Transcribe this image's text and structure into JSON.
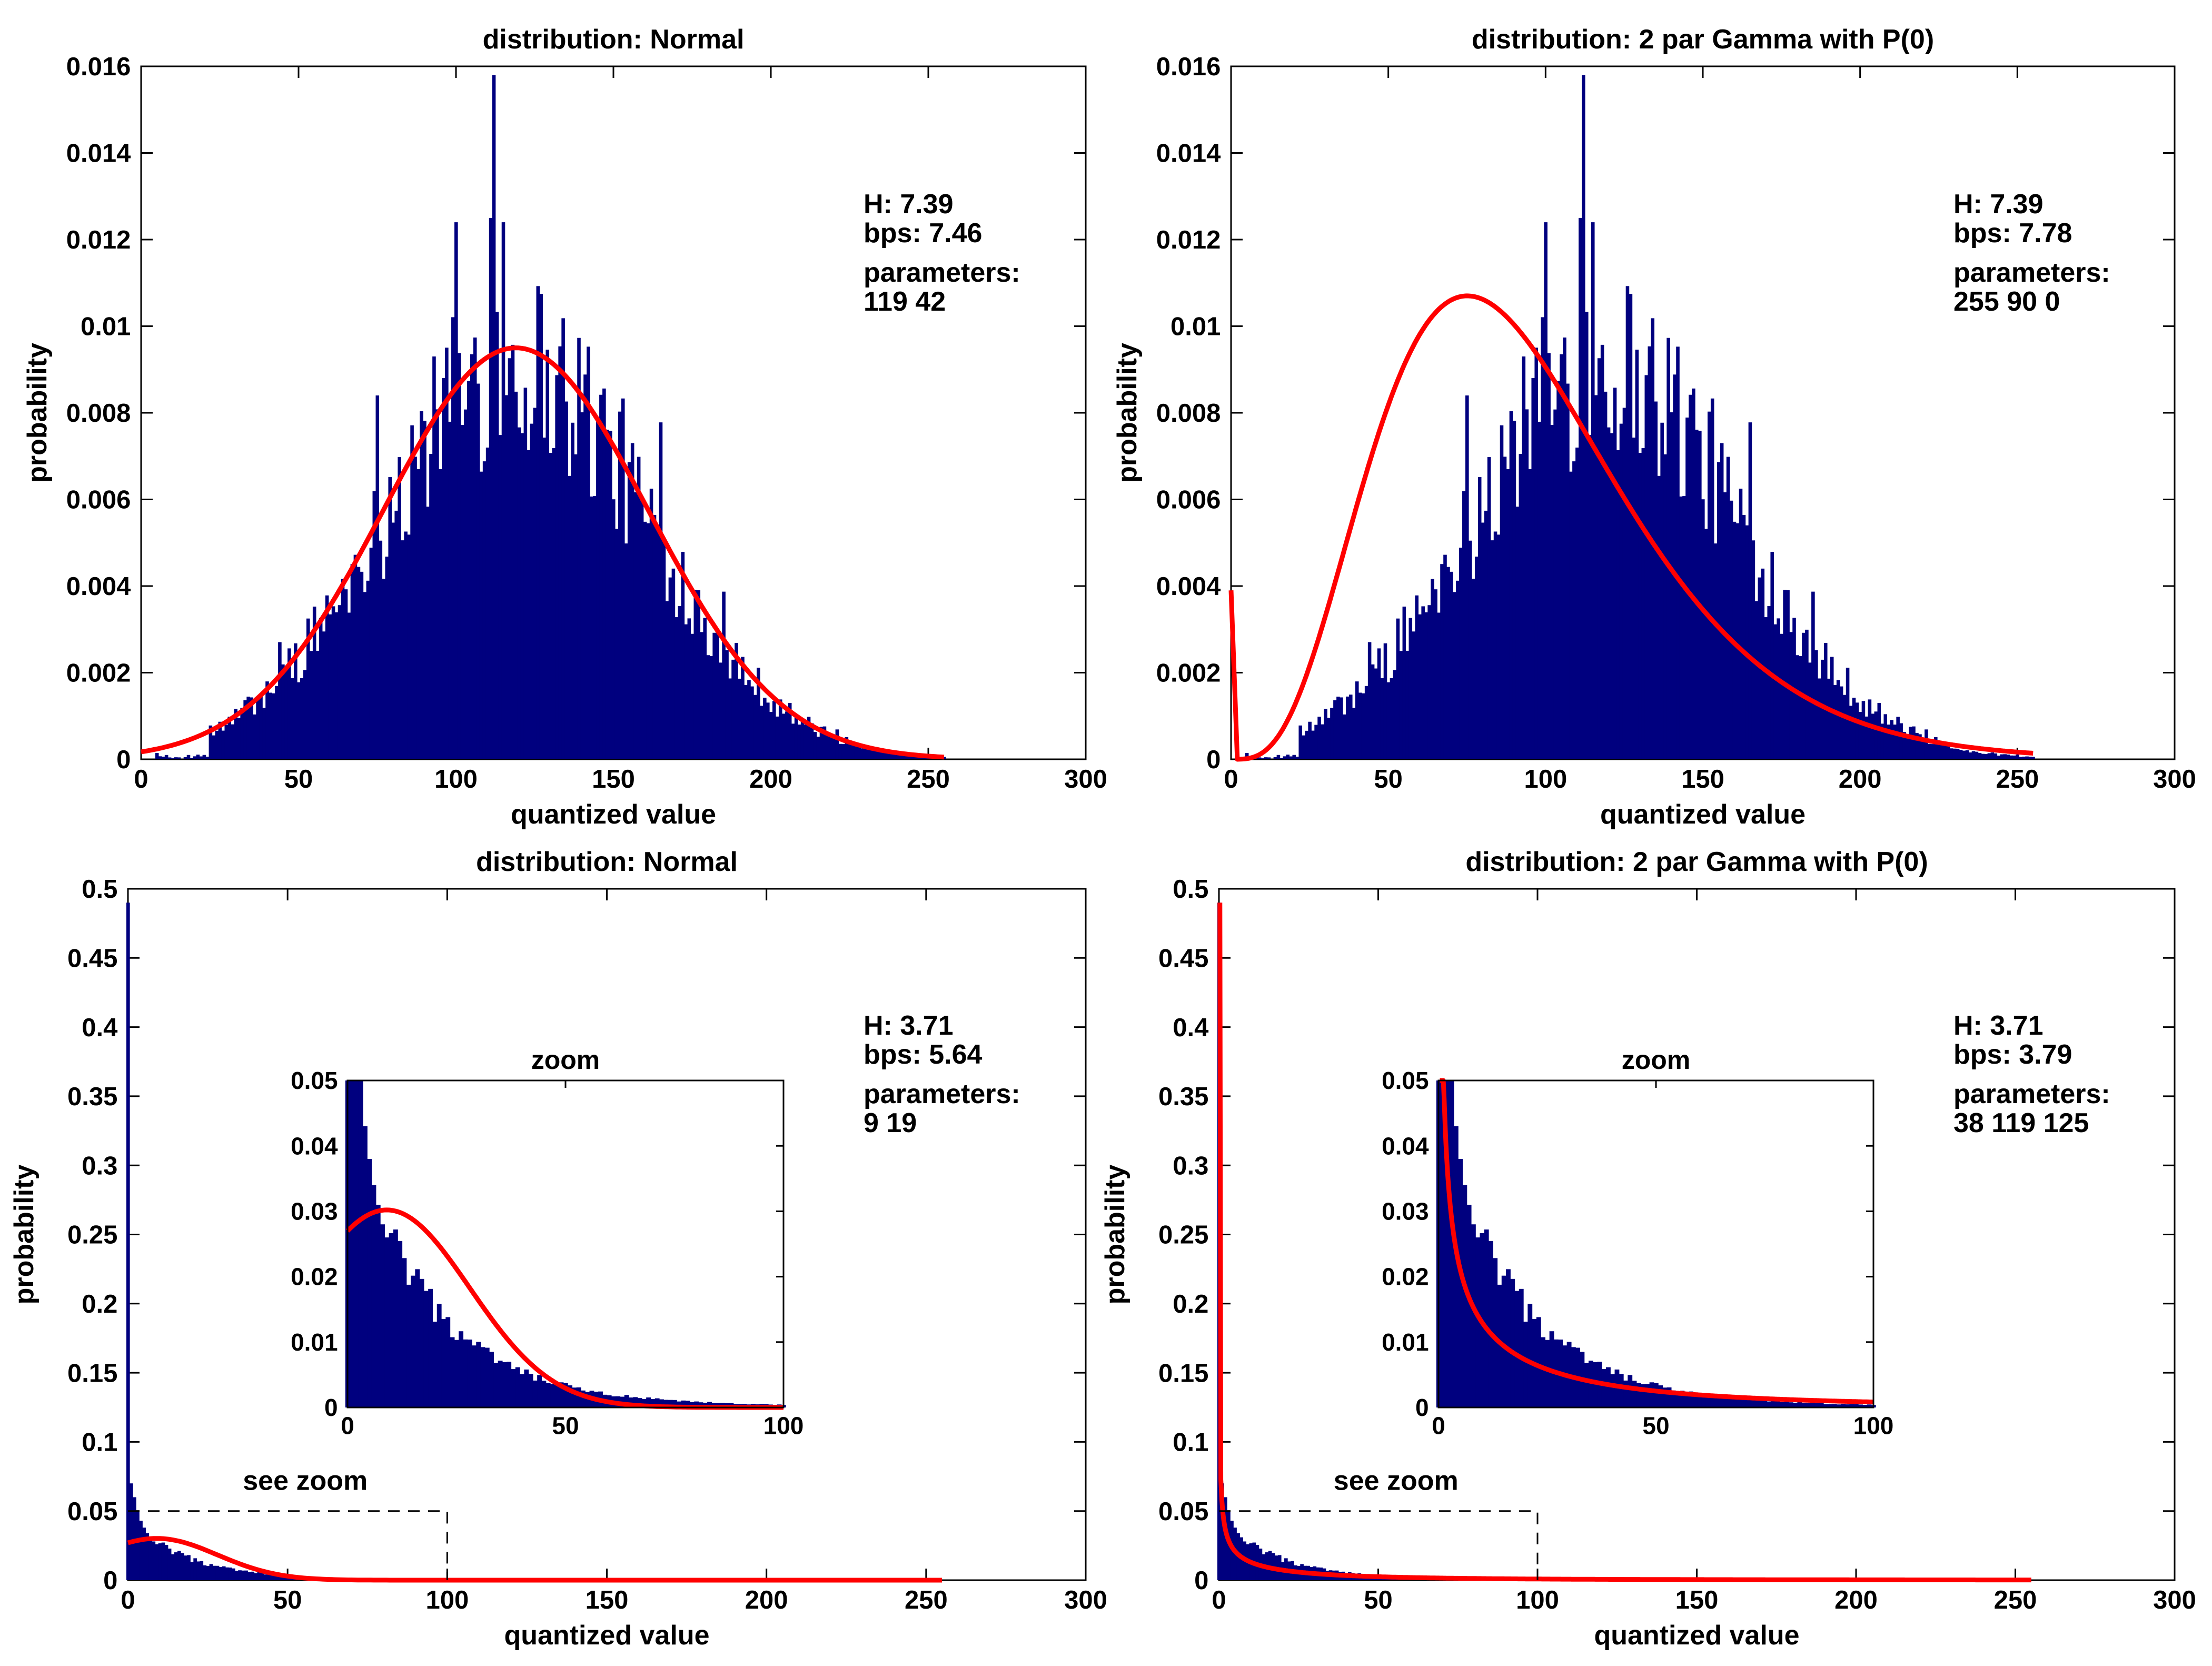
{
  "colors": {
    "histogram": "#00007f",
    "fit_curve": "#ff0000",
    "axes": "#000000",
    "zoom_box": "#000000",
    "background": "#ffffff"
  },
  "chart_data": [
    {
      "id": "top-left",
      "type": "bar",
      "title": "distribution: Normal",
      "xlabel": "quantized value",
      "ylabel": "probability",
      "xlim": [
        0,
        300
      ],
      "ylim": [
        0,
        0.016
      ],
      "xticks": [
        0,
        50,
        100,
        150,
        200,
        250,
        300
      ],
      "yticks": [
        0,
        0.002,
        0.004,
        0.006,
        0.008,
        0.01,
        0.012,
        0.014,
        0.016
      ],
      "x_tick_labels": [
        "0",
        "50",
        "100",
        "150",
        "200",
        "250",
        "300"
      ],
      "y_tick_labels": [
        "0",
        "0.002",
        "0.004",
        "0.006",
        "0.008",
        "0.01",
        "0.012",
        "0.014",
        "0.016"
      ],
      "histogram": {
        "description": "histogram of quantized values 0-255, roughly normal, peak ~0.0158 at 112",
        "peak_x": 112,
        "peak_value": 0.0158,
        "center": 119,
        "spread": 42,
        "min_x": 0,
        "max_x": 255
      },
      "fit": {
        "distribution": "normal",
        "mean": 119,
        "std": 42,
        "x_range": [
          0,
          255
        ]
      },
      "stats": {
        "H": "H:   7.39",
        "bps": "bps: 7.46",
        "parameters_label": "parameters:",
        "parameters": "119   42"
      }
    },
    {
      "id": "top-right",
      "type": "bar",
      "title": "distribution: 2 par Gamma with P(0)",
      "xlabel": "quantized value",
      "ylabel": "probability",
      "xlim": [
        0,
        300
      ],
      "ylim": [
        0,
        0.016
      ],
      "xticks": [
        0,
        50,
        100,
        150,
        200,
        250,
        300
      ],
      "yticks": [
        0,
        0.002,
        0.004,
        0.006,
        0.008,
        0.01,
        0.012,
        0.014,
        0.016
      ],
      "x_tick_labels": [
        "0",
        "50",
        "100",
        "150",
        "200",
        "250",
        "300"
      ],
      "y_tick_labels": [
        "0",
        "0.002",
        "0.004",
        "0.006",
        "0.008",
        "0.01",
        "0.012",
        "0.014",
        "0.016"
      ],
      "histogram": {
        "description": "same histogram as top-left",
        "peak_x": 112,
        "peak_value": 0.0158,
        "center": 119,
        "spread": 42,
        "min_x": 0,
        "max_x": 255
      },
      "fit": {
        "distribution": "gamma_with_p0",
        "p0_value": 0.0039,
        "mode_x": 75,
        "mode_value": 0.0107,
        "x_range": [
          0,
          255
        ]
      },
      "stats": {
        "H": "H:   7.39",
        "bps": "bps: 7.78",
        "parameters_label": "parameters:",
        "parameters": "255   90    0"
      }
    },
    {
      "id": "bottom-left",
      "type": "bar",
      "title": "distribution: Normal",
      "xlabel": "quantized value",
      "ylabel": "probability",
      "xlim": [
        0,
        300
      ],
      "ylim": [
        0,
        0.5
      ],
      "xticks": [
        0,
        50,
        100,
        150,
        200,
        250,
        300
      ],
      "yticks": [
        0,
        0.05,
        0.1,
        0.15,
        0.2,
        0.25,
        0.3,
        0.35,
        0.4,
        0.45,
        0.5
      ],
      "x_tick_labels": [
        "0",
        "50",
        "100",
        "150",
        "200",
        "250",
        "300"
      ],
      "y_tick_labels": [
        "0",
        "0.05",
        "0.1",
        "0.15",
        "0.2",
        "0.25",
        "0.3",
        "0.35",
        "0.4",
        "0.45",
        "0.5"
      ],
      "histogram": {
        "description": "heavily skewed histogram, P(0) ~0.49, decaying tail",
        "values_first": [
          0.49,
          0.07,
          0.06,
          0.05,
          0.043,
          0.038,
          0.034,
          0.031,
          0.028,
          0.026
        ],
        "tail_decay": 18
      },
      "fit": {
        "distribution": "normal",
        "mean": 9,
        "std": 19,
        "x_range": [
          0,
          255
        ]
      },
      "zoom_box": {
        "label": "see zoom",
        "x_range": [
          0,
          100
        ],
        "y_range": [
          0,
          0.05
        ]
      },
      "stats": {
        "H": "H:   3.71",
        "bps": "bps: 5.64",
        "parameters_label": "parameters:",
        "parameters": "9  19"
      },
      "inset": {
        "title": "zoom",
        "xlim": [
          0,
          100
        ],
        "ylim": [
          0,
          0.05
        ],
        "x_tick_labels": [
          "0",
          "50",
          "100"
        ],
        "y_tick_labels": [
          "0",
          "0.01",
          "0.02",
          "0.03",
          "0.04",
          "0.05"
        ]
      }
    },
    {
      "id": "bottom-right",
      "type": "bar",
      "title": "distribution: 2 par Gamma with P(0)",
      "xlabel": "quantized value",
      "ylabel": "probability",
      "xlim": [
        0,
        300
      ],
      "ylim": [
        0,
        0.5
      ],
      "xticks": [
        0,
        50,
        100,
        150,
        200,
        250,
        300
      ],
      "yticks": [
        0,
        0.05,
        0.1,
        0.15,
        0.2,
        0.25,
        0.3,
        0.35,
        0.4,
        0.45,
        0.5
      ],
      "x_tick_labels": [
        "0",
        "50",
        "100",
        "150",
        "200",
        "250",
        "300"
      ],
      "y_tick_labels": [
        "0",
        "0.05",
        "0.1",
        "0.15",
        "0.2",
        "0.25",
        "0.3",
        "0.35",
        "0.4",
        "0.45",
        "0.5"
      ],
      "histogram": {
        "description": "same skewed histogram as bottom-left",
        "values_first": [
          0.49,
          0.07,
          0.06,
          0.05,
          0.043,
          0.038,
          0.034,
          0.031,
          0.028,
          0.026
        ],
        "tail_decay": 18
      },
      "fit": {
        "distribution": "gamma_with_p0",
        "p0_value": 0.49,
        "x_range": [
          0,
          255
        ]
      },
      "zoom_box": {
        "label": "see zoom",
        "x_range": [
          0,
          100
        ],
        "y_range": [
          0,
          0.05
        ]
      },
      "stats": {
        "H": "H:   3.71",
        "bps": "bps: 3.79",
        "parameters_label": "parameters:",
        "parameters": "38  119  125"
      },
      "inset": {
        "title": "zoom",
        "xlim": [
          0,
          100
        ],
        "ylim": [
          0,
          0.05
        ],
        "x_tick_labels": [
          "0",
          "50",
          "100"
        ],
        "y_tick_labels": [
          "0",
          "0.01",
          "0.02",
          "0.03",
          "0.04",
          "0.05"
        ]
      }
    }
  ]
}
